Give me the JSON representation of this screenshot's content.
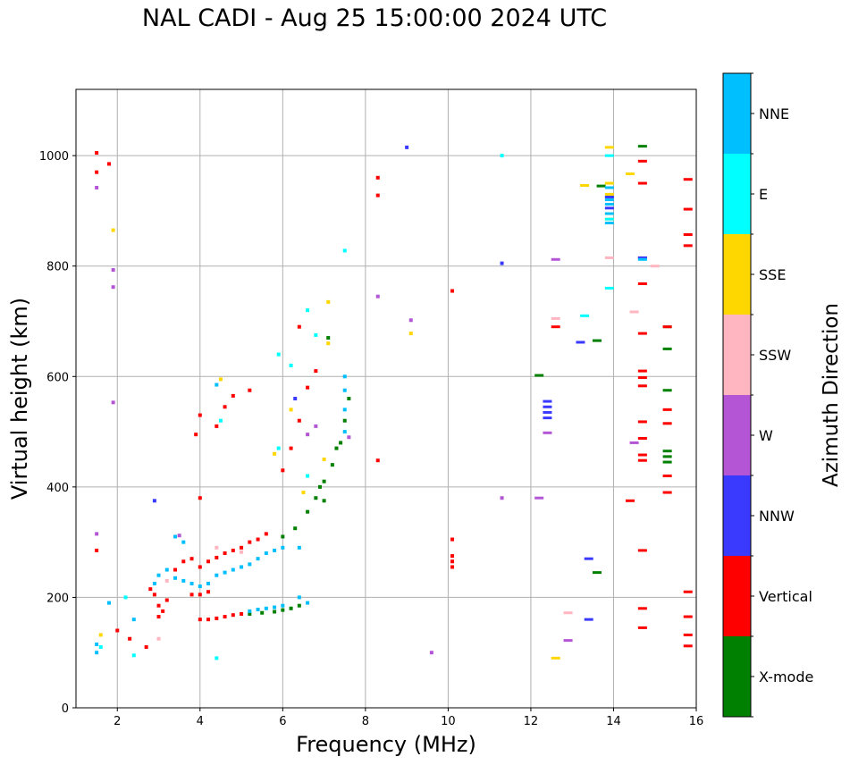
{
  "chart_data": {
    "type": "scatter",
    "title": "NAL CADI - Aug 25 15:00:00 2024 UTC",
    "xlabel": "Frequency (MHz)",
    "ylabel": "Virtual height (km)",
    "xlim": [
      1,
      16
    ],
    "ylim": [
      0,
      1120
    ],
    "xticks": [
      2,
      4,
      6,
      8,
      10,
      12,
      14,
      16
    ],
    "yticks": [
      0,
      200,
      400,
      600,
      800,
      1000
    ],
    "grid": true,
    "colorbar": {
      "label": "Azimuth Direction",
      "categories": [
        {
          "name": "X-mode",
          "color": "#008000"
        },
        {
          "name": "Vertical",
          "color": "#ff0000"
        },
        {
          "name": "NNW",
          "color": "#3a3aff"
        },
        {
          "name": "W",
          "color": "#b455d6"
        },
        {
          "name": "SSW",
          "color": "#ffb6c1"
        },
        {
          "name": "SSE",
          "color": "#ffd700"
        },
        {
          "name": "E",
          "color": "#00ffff"
        },
        {
          "name": "NNE",
          "color": "#00bfff"
        }
      ]
    },
    "series": [
      {
        "name": "X-mode",
        "points": [
          [
            5.2,
            170
          ],
          [
            5.5,
            172
          ],
          [
            5.8,
            174
          ],
          [
            6.0,
            177
          ],
          [
            6.2,
            180
          ],
          [
            6.4,
            185
          ],
          [
            6.0,
            310
          ],
          [
            6.3,
            325
          ],
          [
            6.6,
            355
          ],
          [
            6.8,
            380
          ],
          [
            7.0,
            410
          ],
          [
            7.2,
            440
          ],
          [
            7.4,
            480
          ],
          [
            7.6,
            560
          ],
          [
            6.9,
            400
          ],
          [
            7.0,
            375
          ],
          [
            7.3,
            470
          ],
          [
            7.5,
            520
          ],
          [
            13.6,
            665
          ],
          [
            13.6,
            245
          ],
          [
            13.7,
            945
          ],
          [
            14.7,
            1017
          ],
          [
            15.3,
            690
          ],
          [
            15.3,
            650
          ],
          [
            15.3,
            575
          ],
          [
            15.3,
            465
          ],
          [
            15.3,
            455
          ],
          [
            15.3,
            445
          ],
          [
            12.2,
            602
          ],
          [
            7.1,
            670
          ]
        ]
      },
      {
        "name": "Vertical",
        "points": [
          [
            1.5,
            1005
          ],
          [
            1.5,
            970
          ],
          [
            1.8,
            985
          ],
          [
            2.3,
            125
          ],
          [
            2.9,
            205
          ],
          [
            3.0,
            185
          ],
          [
            3.0,
            165
          ],
          [
            3.1,
            175
          ],
          [
            3.2,
            195
          ],
          [
            3.4,
            250
          ],
          [
            3.6,
            265
          ],
          [
            3.8,
            270
          ],
          [
            4.0,
            255
          ],
          [
            4.2,
            265
          ],
          [
            4.4,
            272
          ],
          [
            4.6,
            280
          ],
          [
            4.8,
            285
          ],
          [
            5.0,
            290
          ],
          [
            5.2,
            300
          ],
          [
            5.4,
            305
          ],
          [
            5.6,
            315
          ],
          [
            4.0,
            160
          ],
          [
            4.2,
            160
          ],
          [
            4.4,
            162
          ],
          [
            4.6,
            165
          ],
          [
            4.8,
            168
          ],
          [
            5.0,
            170
          ],
          [
            3.8,
            205
          ],
          [
            4.0,
            205
          ],
          [
            4.2,
            210
          ],
          [
            3.9,
            495
          ],
          [
            4.0,
            530
          ],
          [
            4.4,
            510
          ],
          [
            4.6,
            545
          ],
          [
            4.8,
            565
          ],
          [
            5.2,
            575
          ],
          [
            6.0,
            430
          ],
          [
            6.2,
            470
          ],
          [
            6.4,
            520
          ],
          [
            6.6,
            580
          ],
          [
            6.8,
            610
          ],
          [
            6.4,
            690
          ],
          [
            8.3,
            960
          ],
          [
            8.3,
            928
          ],
          [
            8.3,
            448
          ],
          [
            10.1,
            755
          ],
          [
            10.1,
            305
          ],
          [
            10.1,
            275
          ],
          [
            10.1,
            265
          ],
          [
            10.1,
            255
          ],
          [
            12.6,
            690
          ],
          [
            14.7,
            990
          ],
          [
            14.7,
            950
          ],
          [
            14.7,
            815
          ],
          [
            14.7,
            768
          ],
          [
            14.7,
            678
          ],
          [
            14.7,
            610
          ],
          [
            14.7,
            598
          ],
          [
            14.7,
            583
          ],
          [
            14.7,
            518
          ],
          [
            14.7,
            488
          ],
          [
            14.7,
            458
          ],
          [
            14.7,
            448
          ],
          [
            14.7,
            285
          ],
          [
            14.7,
            180
          ],
          [
            14.7,
            145
          ],
          [
            14.4,
            375
          ],
          [
            15.3,
            690
          ],
          [
            15.3,
            540
          ],
          [
            15.3,
            515
          ],
          [
            15.3,
            420
          ],
          [
            15.3,
            390
          ],
          [
            15.8,
            957
          ],
          [
            15.8,
            903
          ],
          [
            15.8,
            857
          ],
          [
            15.8,
            837
          ],
          [
            15.8,
            210
          ],
          [
            15.8,
            165
          ],
          [
            15.8,
            132
          ],
          [
            15.8,
            112
          ],
          [
            2.0,
            140
          ],
          [
            2.7,
            110
          ],
          [
            4.0,
            380
          ],
          [
            1.5,
            285
          ],
          [
            2.8,
            215
          ]
        ]
      },
      {
        "name": "NNW",
        "points": [
          [
            9.0,
            1015
          ],
          [
            11.3,
            805
          ],
          [
            12.4,
            555
          ],
          [
            12.4,
            545
          ],
          [
            12.4,
            535
          ],
          [
            12.4,
            525
          ],
          [
            13.4,
            270
          ],
          [
            13.4,
            160
          ],
          [
            13.2,
            662
          ],
          [
            14.7,
            815
          ],
          [
            13.9,
            925
          ],
          [
            13.9,
            905
          ],
          [
            6.3,
            560
          ],
          [
            2.9,
            375
          ]
        ]
      },
      {
        "name": "W",
        "points": [
          [
            1.5,
            942
          ],
          [
            1.9,
            793
          ],
          [
            1.9,
            762
          ],
          [
            1.9,
            553
          ],
          [
            8.3,
            745
          ],
          [
            9.1,
            702
          ],
          [
            9.6,
            100
          ],
          [
            11.3,
            380
          ],
          [
            12.2,
            380
          ],
          [
            12.4,
            498
          ],
          [
            12.6,
            812
          ],
          [
            12.9,
            122
          ],
          [
            14.5,
            480
          ],
          [
            3.5,
            312
          ],
          [
            6.8,
            510
          ],
          [
            7.6,
            490
          ],
          [
            6.6,
            495
          ],
          [
            1.5,
            315
          ]
        ]
      },
      {
        "name": "SSW",
        "points": [
          [
            12.6,
            705
          ],
          [
            12.9,
            172
          ],
          [
            14.5,
            717
          ],
          [
            15.0,
            800
          ],
          [
            13.9,
            815
          ],
          [
            3.0,
            125
          ],
          [
            4.4,
            290
          ],
          [
            5.0,
            282
          ],
          [
            3.2,
            230
          ]
        ]
      },
      {
        "name": "SSE",
        "points": [
          [
            1.6,
            132
          ],
          [
            1.9,
            865
          ],
          [
            9.1,
            678
          ],
          [
            12.6,
            90
          ],
          [
            13.3,
            946
          ],
          [
            13.9,
            1015
          ],
          [
            13.9,
            950
          ],
          [
            13.9,
            930
          ],
          [
            13.9,
            895
          ],
          [
            13.9,
            885
          ],
          [
            14.4,
            967
          ],
          [
            7.1,
            735
          ],
          [
            7.1,
            660
          ],
          [
            4.5,
            595
          ],
          [
            6.2,
            540
          ],
          [
            5.8,
            460
          ],
          [
            6.5,
            390
          ],
          [
            7.0,
            450
          ]
        ]
      },
      {
        "name": "E",
        "points": [
          [
            2.4,
            95
          ],
          [
            4.4,
            90
          ],
          [
            7.5,
            828
          ],
          [
            11.3,
            1000
          ],
          [
            13.3,
            710
          ],
          [
            13.9,
            1000
          ],
          [
            13.9,
            760
          ],
          [
            13.9,
            885
          ],
          [
            4.5,
            520
          ],
          [
            5.9,
            640
          ],
          [
            6.2,
            620
          ],
          [
            6.6,
            720
          ],
          [
            6.8,
            675
          ],
          [
            6.6,
            420
          ],
          [
            1.6,
            110
          ],
          [
            2.2,
            200
          ],
          [
            5.9,
            470
          ]
        ]
      },
      {
        "name": "NNE",
        "points": [
          [
            1.5,
            100
          ],
          [
            1.5,
            115
          ],
          [
            1.8,
            190
          ],
          [
            2.4,
            160
          ],
          [
            2.9,
            225
          ],
          [
            3.0,
            240
          ],
          [
            3.2,
            250
          ],
          [
            3.4,
            235
          ],
          [
            3.6,
            230
          ],
          [
            3.8,
            225
          ],
          [
            4.0,
            220
          ],
          [
            4.2,
            225
          ],
          [
            4.4,
            240
          ],
          [
            4.6,
            245
          ],
          [
            4.8,
            250
          ],
          [
            5.0,
            255
          ],
          [
            5.2,
            260
          ],
          [
            5.4,
            270
          ],
          [
            5.6,
            280
          ],
          [
            5.8,
            285
          ],
          [
            6.0,
            290
          ],
          [
            6.4,
            290
          ],
          [
            5.2,
            175
          ],
          [
            5.4,
            178
          ],
          [
            5.6,
            180
          ],
          [
            5.8,
            182
          ],
          [
            6.0,
            185
          ],
          [
            6.4,
            200
          ],
          [
            6.6,
            190
          ],
          [
            3.4,
            310
          ],
          [
            3.6,
            300
          ],
          [
            4.4,
            585
          ],
          [
            7.5,
            600
          ],
          [
            7.5,
            575
          ],
          [
            7.5,
            540
          ],
          [
            7.5,
            500
          ],
          [
            13.9,
            942
          ],
          [
            13.9,
            920
          ],
          [
            13.9,
            912
          ],
          [
            13.9,
            895
          ],
          [
            13.9,
            878
          ],
          [
            14.7,
            812
          ]
        ]
      }
    ]
  }
}
